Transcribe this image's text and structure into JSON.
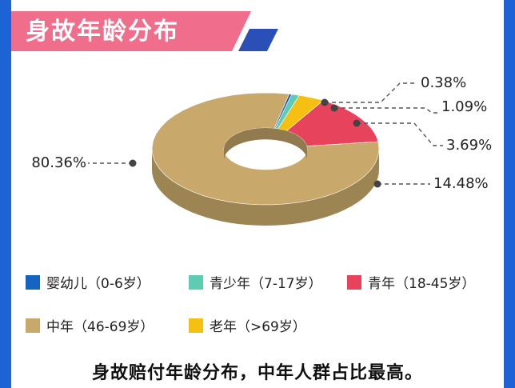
{
  "header": {
    "title": "身故年龄分布"
  },
  "caption": "身故赔付年龄分布，中年人群占比最高。",
  "colors": {
    "page_bg": "#1e63d6",
    "title_banner": "#f06d8b",
    "title_stripe": "#2a4fb7"
  },
  "chart_data": {
    "type": "pie",
    "style": "3d-donut",
    "title": "身故年龄分布",
    "series": [
      {
        "name": "婴幼儿（0-6岁）",
        "value": 0.38,
        "label": "0.38%",
        "color": "#1565c0"
      },
      {
        "name": "青少年（7-17岁）",
        "value": 1.09,
        "label": "1.09%",
        "color": "#5ecbb3"
      },
      {
        "name": "老年（>69岁）",
        "value": 3.69,
        "label": "3.69%",
        "color": "#f5c012"
      },
      {
        "name": "青年（18-45岁）",
        "value": 14.48,
        "label": "14.48%",
        "color": "#e8435c"
      },
      {
        "name": "中年（46-69岁）",
        "value": 80.36,
        "label": "80.36%",
        "color": "#c9a96b"
      }
    ],
    "legend": [
      {
        "label": "婴幼儿（0-6岁）",
        "color": "#1565c0"
      },
      {
        "label": "青少年（7-17岁）",
        "color": "#5ecbb3"
      },
      {
        "label": "青年（18-45岁）",
        "color": "#e8435c"
      },
      {
        "label": "中年（46-69岁）",
        "color": "#c9a96b"
      },
      {
        "label": "老年（>69岁）",
        "color": "#f5c012"
      }
    ],
    "legend_position": "bottom"
  }
}
